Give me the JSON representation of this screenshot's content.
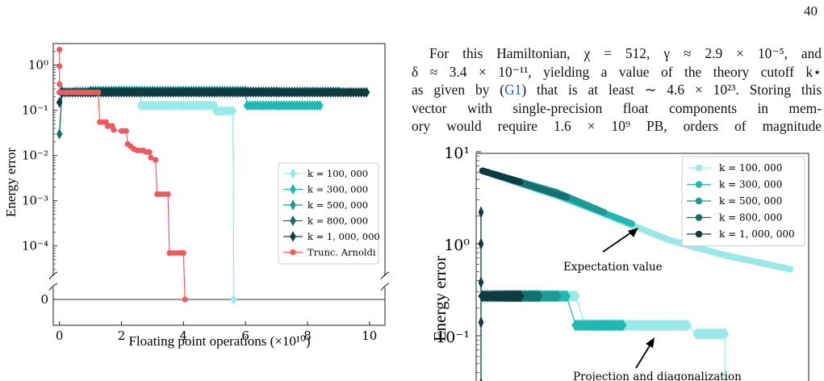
{
  "page": {
    "number": "40",
    "paragraph_lines": [
      "For this Hamiltonian, χ = 512, γ ≈ 2.9 × 10⁻⁵, and",
      "δ ≈ 3.4 × 10⁻¹¹, yielding a value of the theory cutoff k⋆",
      "as given by (G1) that is at least ∼ 4.6 × 10²³. Storing this",
      "vector with single-precision float components in mem-",
      "ory would require 1.6 × 10⁹  PB, orders of magnitude"
    ],
    "ref_text": "G1"
  },
  "colors": {
    "c100": "#9ae9e9",
    "c300": "#20b8b4",
    "c500": "#1d9a94",
    "c800": "#156f6e",
    "c1000": "#0e3c40",
    "arnoldi": "#f05a5f"
  },
  "chart_data": [
    {
      "type": "line",
      "xlabel": "Floating point operations  (×10¹⁰)",
      "ylabel": "Energy error",
      "xticks": [
        "0",
        "2",
        "4",
        "6",
        "8",
        "10"
      ],
      "yticks": [
        "10⁰",
        "10⁻¹",
        "10⁻²",
        "10⁻³",
        "10⁻⁴",
        "0"
      ],
      "xlim": [
        -0.2,
        10.5
      ],
      "ylim": [
        3e-05,
        3
      ],
      "yscale": "log with broken axis at 0",
      "legend_position": "center-right",
      "series": [
        {
          "name": "k = 100, 000",
          "key": "k100",
          "marker": "thin-diamond",
          "points": [
            [
              0.05,
              0.25
            ],
            [
              0.5,
              0.27
            ],
            [
              1.0,
              0.27
            ],
            [
              1.6,
              0.27
            ],
            [
              2.1,
              0.27
            ],
            [
              2.6,
              0.27
            ],
            [
              2.62,
              0.128
            ],
            [
              3.5,
              0.128
            ],
            [
              4.5,
              0.128
            ],
            [
              5.0,
              0.128
            ],
            [
              5.05,
              0.097
            ],
            [
              5.6,
              0.097
            ],
            [
              5.62,
              0
            ]
          ]
        },
        {
          "name": "k = 300, 000",
          "key": "k300",
          "marker": "thin-diamond",
          "points": [
            [
              0.05,
              0.25
            ],
            [
              1.0,
              0.27
            ],
            [
              2.0,
              0.27
            ],
            [
              3.0,
              0.27
            ],
            [
              4.0,
              0.27
            ],
            [
              5.0,
              0.27
            ],
            [
              6.0,
              0.27
            ],
            [
              6.05,
              0.128
            ],
            [
              7.0,
              0.128
            ],
            [
              8.4,
              0.128
            ]
          ]
        },
        {
          "name": "k = 500, 000",
          "key": "k500",
          "marker": "thin-diamond",
          "points": [
            [
              0.05,
              0.25
            ],
            [
              1.0,
              0.26
            ],
            [
              2.0,
              0.26
            ],
            [
              4.0,
              0.26
            ],
            [
              6.0,
              0.26
            ],
            [
              8.0,
              0.26
            ],
            [
              9.0,
              0.26
            ]
          ]
        },
        {
          "name": "k = 800, 000",
          "key": "k800",
          "marker": "thin-diamond",
          "points": [
            [
              0.0,
              0.03
            ],
            [
              0.08,
              0.27
            ],
            [
              1.0,
              0.26
            ],
            [
              3.0,
              0.26
            ],
            [
              5.0,
              0.26
            ],
            [
              7.0,
              0.26
            ],
            [
              9.4,
              0.25
            ]
          ]
        },
        {
          "name": "k = 1, 000, 000",
          "key": "k1000",
          "marker": "thin-diamond",
          "points": [
            [
              0.0,
              0.15
            ],
            [
              0.1,
              0.25
            ],
            [
              1.0,
              0.25
            ],
            [
              3.0,
              0.25
            ],
            [
              5.0,
              0.25
            ],
            [
              7.0,
              0.25
            ],
            [
              9.9,
              0.25
            ]
          ]
        },
        {
          "name": "Trunc. Arnoldi",
          "key": "arnoldi",
          "marker": "circle",
          "points": [
            [
              0.0,
              2.2
            ],
            [
              0.0,
              0.95
            ],
            [
              0.0,
              0.38
            ],
            [
              0.0,
              0.25
            ],
            [
              0.2,
              0.25
            ],
            [
              0.6,
              0.25
            ],
            [
              1.0,
              0.25
            ],
            [
              1.25,
              0.25
            ],
            [
              1.3,
              0.055
            ],
            [
              1.5,
              0.055
            ],
            [
              1.55,
              0.045
            ],
            [
              1.7,
              0.045
            ],
            [
              1.75,
              0.037
            ],
            [
              2.0,
              0.035
            ],
            [
              2.15,
              0.035
            ],
            [
              2.2,
              0.018
            ],
            [
              2.3,
              0.016
            ],
            [
              2.4,
              0.014
            ],
            [
              2.5,
              0.013
            ],
            [
              2.7,
              0.013
            ],
            [
              2.8,
              0.012
            ],
            [
              2.9,
              0.012
            ],
            [
              2.95,
              0.009
            ],
            [
              3.1,
              0.008
            ],
            [
              3.15,
              0.0014
            ],
            [
              3.5,
              0.0014
            ],
            [
              3.55,
              7e-05
            ],
            [
              4.0,
              7e-05
            ],
            [
              4.05,
              0
            ]
          ]
        }
      ]
    },
    {
      "type": "line",
      "ylabel": "Energy error",
      "yticks": [
        "10¹",
        "10⁰",
        "10⁻¹"
      ],
      "ylim": [
        0.03,
        10
      ],
      "yscale": "log",
      "legend_position": "top-right",
      "annotations": [
        "Expectation value",
        "Projection and diagonalization"
      ],
      "series": [
        {
          "name": "k = 100, 000",
          "key": "k100",
          "expectation": [
            [
              0.0,
              6.2
            ],
            [
              0.5,
              2.8
            ],
            [
              1.0,
              1.1
            ],
            [
              1.3,
              0.75
            ],
            [
              1.65,
              0.53
            ]
          ],
          "projection": [
            [
              0.0,
              0.27
            ],
            [
              0.5,
              0.27
            ],
            [
              0.55,
              0.13
            ],
            [
              1.1,
              0.13
            ],
            [
              1.15,
              0.105
            ],
            [
              1.3,
              0.105
            ]
          ]
        },
        {
          "name": "k = 300, 000",
          "key": "k300",
          "expectation": [
            [
              0.0,
              6.2
            ],
            [
              0.4,
              3.4
            ],
            [
              0.8,
              1.65
            ]
          ],
          "projection": [
            [
              0.0,
              0.27
            ],
            [
              0.45,
              0.27
            ],
            [
              0.5,
              0.13
            ],
            [
              0.75,
              0.13
            ]
          ]
        },
        {
          "name": "k = 500, 000",
          "key": "k500",
          "expectation": [
            [
              0.0,
              6.2
            ],
            [
              0.4,
              3.6
            ],
            [
              0.65,
              2.2
            ]
          ],
          "projection": [
            [
              0.0,
              0.27
            ],
            [
              0.4,
              0.27
            ]
          ]
        },
        {
          "name": "k = 800, 000",
          "key": "k800",
          "expectation": [
            [
              0.0,
              6.2
            ],
            [
              0.25,
              4.3
            ],
            [
              0.45,
              3.2
            ]
          ],
          "projection": [
            [
              0.0,
              0.27
            ],
            [
              0.3,
              0.27
            ]
          ]
        },
        {
          "name": "k = 1, 000, 000",
          "key": "k1000",
          "expectation": [
            [
              0.0,
              6.2
            ],
            [
              0.2,
              4.7
            ]
          ],
          "projection": [
            [
              0.0,
              0.27
            ],
            [
              0.2,
              0.27
            ]
          ],
          "spike": [
            [
              0.0,
              2.2
            ],
            [
              0.0,
              1.0
            ],
            [
              0.0,
              0.38
            ],
            [
              0.0,
              0.14
            ],
            [
              0.0,
              0.03
            ]
          ]
        }
      ]
    }
  ]
}
